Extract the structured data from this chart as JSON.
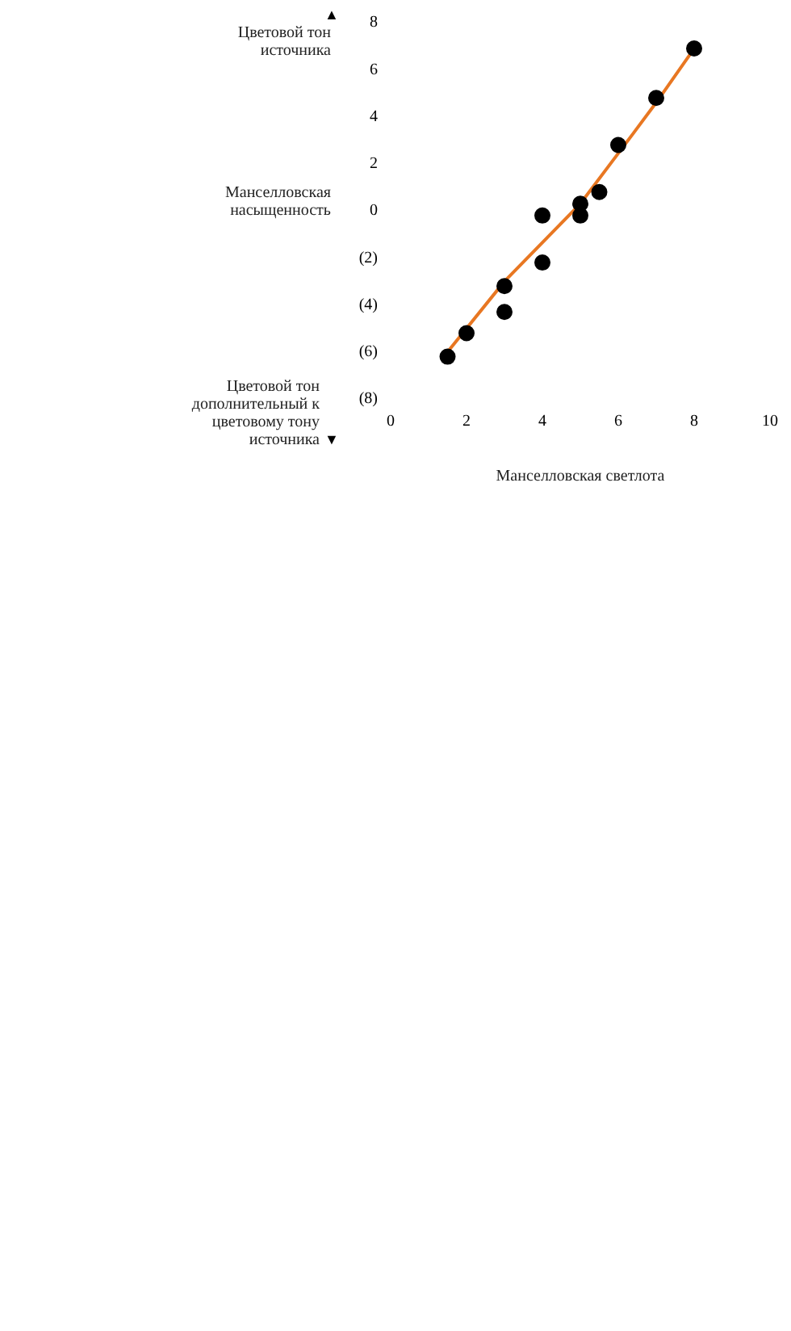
{
  "chart_data": {
    "type": "scatter",
    "xlabel": "Манселловская светлота",
    "annotations": [
      "▲",
      "Цветовой тон источника",
      "Манселловская насыщенность",
      "Цветовой тон дополнительный к цветовому тону источника",
      "▼"
    ],
    "xlim": [
      0,
      10
    ],
    "xticks": [
      0,
      2,
      4,
      6,
      8,
      10
    ],
    "ylim": [
      -8,
      8
    ],
    "yticks": [
      8,
      6,
      4,
      2,
      0,
      {
        "value": -2,
        "label": "(2)"
      },
      {
        "value": -4,
        "label": "(4)"
      },
      {
        "value": -6,
        "label": "(6)"
      },
      {
        "value": -8,
        "label": "(8)"
      }
    ],
    "grid": false,
    "legend": false,
    "marker": "circle",
    "series": [
      {
        "color": "#000000",
        "x": [
          1.5,
          2.0,
          3.0,
          3.0,
          4.0,
          4.0,
          5.0,
          5.0,
          5.5,
          6.0,
          7.0,
          8.0
        ],
        "values": [
          -6.2,
          -5.2,
          -3.2,
          -4.3,
          -2.2,
          -0.2,
          -0.2,
          0.3,
          0.8,
          2.8,
          4.8,
          6.9
        ]
      },
      {
        "type": "line",
        "color": "#e87722",
        "marker": "none",
        "line_style": "solid",
        "x": [
          1.5,
          3.0,
          5.0,
          6.4,
          7.0,
          8.0
        ],
        "values": [
          -6.0,
          -3.0,
          0.3,
          3.3,
          4.6,
          6.9
        ]
      }
    ]
  }
}
